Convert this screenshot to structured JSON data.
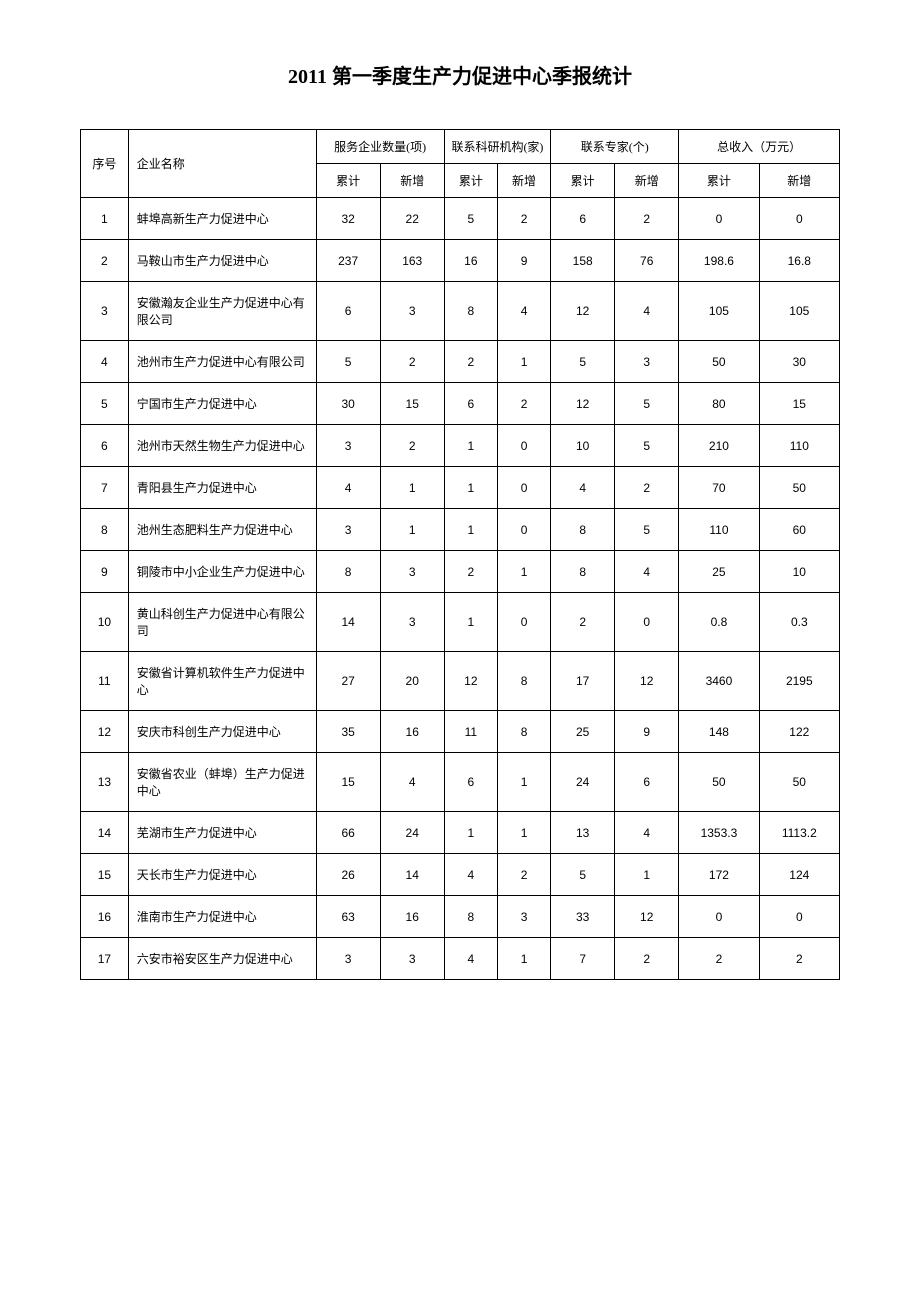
{
  "title": "2011 第一季度生产力促进中心季报统计",
  "headers": {
    "seq": "序号",
    "name": "企业名称",
    "group1": "服务企业数量(项)",
    "group2": "联系科研机构(家)",
    "group3": "联系专家(个)",
    "group4": "总收入（万元）",
    "cumulative": "累计",
    "newadd": "新增"
  },
  "columns": [
    "seq",
    "name",
    "svc_cum",
    "svc_new",
    "inst_cum",
    "inst_new",
    "expert_cum",
    "expert_new",
    "income_cum",
    "income_new"
  ],
  "rows": [
    {
      "seq": 1,
      "name": "蚌埠高新生产力促进中心",
      "svc_cum": 32,
      "svc_new": 22,
      "inst_cum": 5,
      "inst_new": 2,
      "expert_cum": 6,
      "expert_new": 2,
      "income_cum": 0,
      "income_new": 0
    },
    {
      "seq": 2,
      "name": "马鞍山市生产力促进中心",
      "svc_cum": 237,
      "svc_new": 163,
      "inst_cum": 16,
      "inst_new": 9,
      "expert_cum": 158,
      "expert_new": 76,
      "income_cum": 198.6,
      "income_new": 16.8
    },
    {
      "seq": 3,
      "name": "安徽瀚友企业生产力促进中心有限公司",
      "svc_cum": 6,
      "svc_new": 3,
      "inst_cum": 8,
      "inst_new": 4,
      "expert_cum": 12,
      "expert_new": 4,
      "income_cum": 105,
      "income_new": 105
    },
    {
      "seq": 4,
      "name": "池州市生产力促进中心有限公司",
      "svc_cum": 5,
      "svc_new": 2,
      "inst_cum": 2,
      "inst_new": 1,
      "expert_cum": 5,
      "expert_new": 3,
      "income_cum": 50,
      "income_new": 30
    },
    {
      "seq": 5,
      "name": "宁国市生产力促进中心",
      "svc_cum": 30,
      "svc_new": 15,
      "inst_cum": 6,
      "inst_new": 2,
      "expert_cum": 12,
      "expert_new": 5,
      "income_cum": 80,
      "income_new": 15
    },
    {
      "seq": 6,
      "name": "池州市天然生物生产力促进中心",
      "svc_cum": 3,
      "svc_new": 2,
      "inst_cum": 1,
      "inst_new": 0,
      "expert_cum": 10,
      "expert_new": 5,
      "income_cum": 210,
      "income_new": 110
    },
    {
      "seq": 7,
      "name": "青阳县生产力促进中心",
      "svc_cum": 4,
      "svc_new": 1,
      "inst_cum": 1,
      "inst_new": 0,
      "expert_cum": 4,
      "expert_new": 2,
      "income_cum": 70,
      "income_new": 50
    },
    {
      "seq": 8,
      "name": "池州生态肥料生产力促进中心",
      "svc_cum": 3,
      "svc_new": 1,
      "inst_cum": 1,
      "inst_new": 0,
      "expert_cum": 8,
      "expert_new": 5,
      "income_cum": 110,
      "income_new": 60
    },
    {
      "seq": 9,
      "name": "铜陵市中小企业生产力促进中心",
      "svc_cum": 8,
      "svc_new": 3,
      "inst_cum": 2,
      "inst_new": 1,
      "expert_cum": 8,
      "expert_new": 4,
      "income_cum": 25,
      "income_new": 10
    },
    {
      "seq": 10,
      "name": "黄山科创生产力促进中心有限公司",
      "svc_cum": 14,
      "svc_new": 3,
      "inst_cum": 1,
      "inst_new": 0,
      "expert_cum": 2,
      "expert_new": 0,
      "income_cum": 0.8,
      "income_new": 0.3
    },
    {
      "seq": 11,
      "name": "安徽省计算机软件生产力促进中心",
      "svc_cum": 27,
      "svc_new": 20,
      "inst_cum": 12,
      "inst_new": 8,
      "expert_cum": 17,
      "expert_new": 12,
      "income_cum": 3460,
      "income_new": 2195
    },
    {
      "seq": 12,
      "name": "安庆市科创生产力促进中心",
      "svc_cum": 35,
      "svc_new": 16,
      "inst_cum": 11,
      "inst_new": 8,
      "expert_cum": 25,
      "expert_new": 9,
      "income_cum": 148,
      "income_new": 122
    },
    {
      "seq": 13,
      "name": "安徽省农业（蚌埠）生产力促进中心",
      "svc_cum": 15,
      "svc_new": 4,
      "inst_cum": 6,
      "inst_new": 1,
      "expert_cum": 24,
      "expert_new": 6,
      "income_cum": 50,
      "income_new": 50
    },
    {
      "seq": 14,
      "name": "芜湖市生产力促进中心",
      "svc_cum": 66,
      "svc_new": 24,
      "inst_cum": 1,
      "inst_new": 1,
      "expert_cum": 13,
      "expert_new": 4,
      "income_cum": 1353.3,
      "income_new": 1113.2
    },
    {
      "seq": 15,
      "name": "天长市生产力促进中心",
      "svc_cum": 26,
      "svc_new": 14,
      "inst_cum": 4,
      "inst_new": 2,
      "expert_cum": 5,
      "expert_new": 1,
      "income_cum": 172,
      "income_new": 124
    },
    {
      "seq": 16,
      "name": "淮南市生产力促进中心",
      "svc_cum": 63,
      "svc_new": 16,
      "inst_cum": 8,
      "inst_new": 3,
      "expert_cum": 33,
      "expert_new": 12,
      "income_cum": 0,
      "income_new": 0
    },
    {
      "seq": 17,
      "name": "六安市裕安区生产力促进中心",
      "svc_cum": 3,
      "svc_new": 3,
      "inst_cum": 4,
      "inst_new": 1,
      "expert_cum": 7,
      "expert_new": 2,
      "income_cum": 2,
      "income_new": 2
    }
  ]
}
